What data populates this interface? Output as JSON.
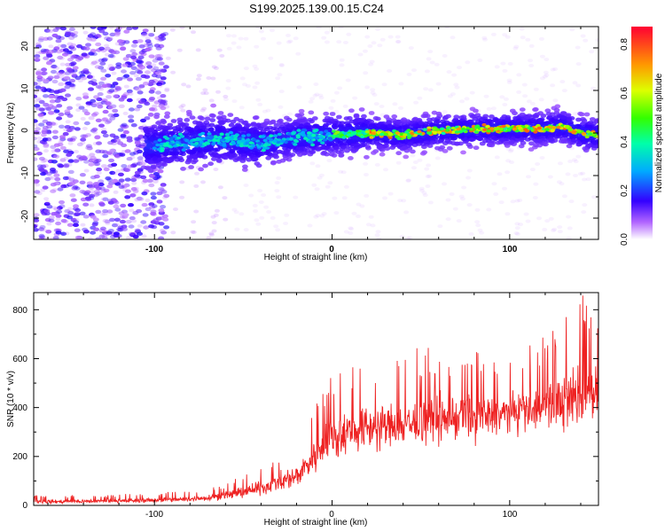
{
  "title": "S199.2025.139.00.15.C24",
  "colors": {
    "snr_line": "#ee2222",
    "axis": "#000000"
  },
  "chart_data": [
    {
      "type": "heatmap",
      "xlabel": "Height of straight line (km)",
      "ylabel": "Frequency (Hz)",
      "xlim": [
        -168,
        150
      ],
      "ylim": [
        -25,
        25
      ],
      "x_ticks": [
        "-100",
        "0",
        "100"
      ],
      "y_ticks": [
        "20",
        "10",
        "0",
        "-10",
        "-20"
      ],
      "colorbar": {
        "label": "Normalized spectral amplitude",
        "range": [
          0,
          0.87
        ],
        "ticks": [
          "0.0",
          "0.2",
          "0.4",
          "0.6",
          "0.8"
        ],
        "colormap": "rainbow"
      },
      "ridge": {
        "x": [
          -100,
          -80,
          -60,
          -40,
          -20,
          0,
          20,
          40,
          60,
          80,
          100,
          120,
          130,
          140,
          150
        ],
        "y": [
          -3,
          -2,
          -1.5,
          -2.5,
          -1,
          -0.5,
          0,
          -0.5,
          0.5,
          0.8,
          1,
          1,
          1.5,
          0,
          -0.5
        ]
      }
    },
    {
      "type": "line",
      "xlabel": "Height of straight line (km)",
      "ylabel": "SNR (10 * v/v)",
      "xlim": [
        -168,
        150
      ],
      "ylim": [
        0,
        870
      ],
      "x_ticks": [
        "-100",
        "0",
        "100"
      ],
      "y_ticks": [
        "0",
        "200",
        "400",
        "600",
        "800"
      ],
      "envelope": {
        "x": [
          -168,
          -120,
          -80,
          -60,
          -40,
          -20,
          -10,
          0,
          20,
          40,
          60,
          80,
          100,
          120,
          140,
          150
        ],
        "mean": [
          15,
          18,
          25,
          40,
          70,
          120,
          200,
          280,
          320,
          330,
          350,
          360,
          380,
          400,
          450,
          470
        ],
        "peak": [
          40,
          45,
          60,
          90,
          160,
          260,
          420,
          560,
          600,
          640,
          650,
          640,
          620,
          700,
          870,
          800
        ]
      }
    }
  ]
}
